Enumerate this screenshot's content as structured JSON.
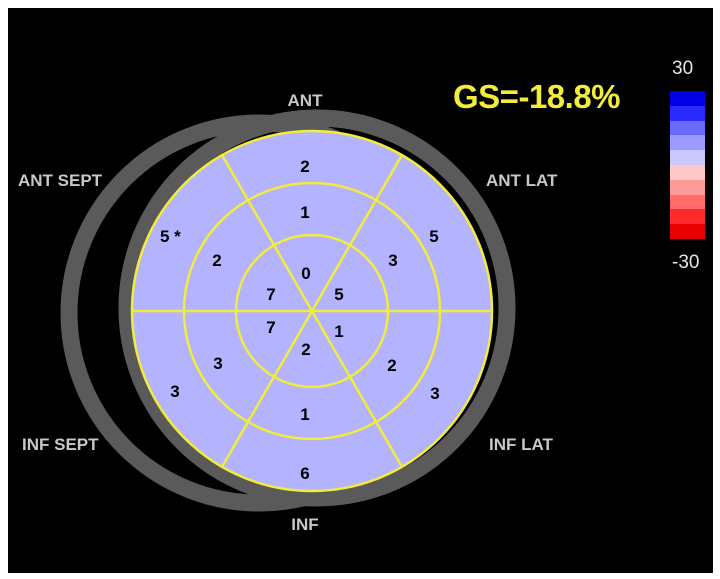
{
  "global_strain": {
    "label": "GS=-18.8%"
  },
  "color_scale": {
    "max_label": "30",
    "min_label": "-30",
    "colors": [
      "#0000e6",
      "#2a2aff",
      "#6a6aff",
      "#9a9aff",
      "#c8c8ff",
      "#ffc8c8",
      "#ff9a9a",
      "#ff6a6a",
      "#ff2a2a",
      "#e60000"
    ]
  },
  "walls": {
    "ant": "ANT",
    "ant_lat": "ANT LAT",
    "inf_lat": "INF LAT",
    "inf": "INF",
    "inf_sept": "INF SEPT",
    "ant_sept": "ANT SEPT"
  },
  "segments": {
    "basal": {
      "anterior": "2",
      "anterolateral": "5",
      "inferolateral": "3",
      "inferior": "6",
      "inferoseptal": "3",
      "anteroseptal": "5 *"
    },
    "mid": {
      "anterior": "1",
      "anterolateral": "3",
      "inferolateral": "2",
      "inferior": "1",
      "inferoseptal": "3",
      "anteroseptal": "2"
    },
    "apical": {
      "anterior": "0",
      "lateral": "5",
      "inferior": "2",
      "septal": "7",
      "septal_inferior": "7",
      "lateral_inferior": "1"
    }
  },
  "colors": {
    "segment_fill": "#b3b3ff",
    "segment_lines": "#f2ec3c",
    "ring": "#5a5a5a",
    "label_text": "#c8c8c8",
    "value_text": "#000000",
    "gs_text": "#f2ec3c"
  }
}
